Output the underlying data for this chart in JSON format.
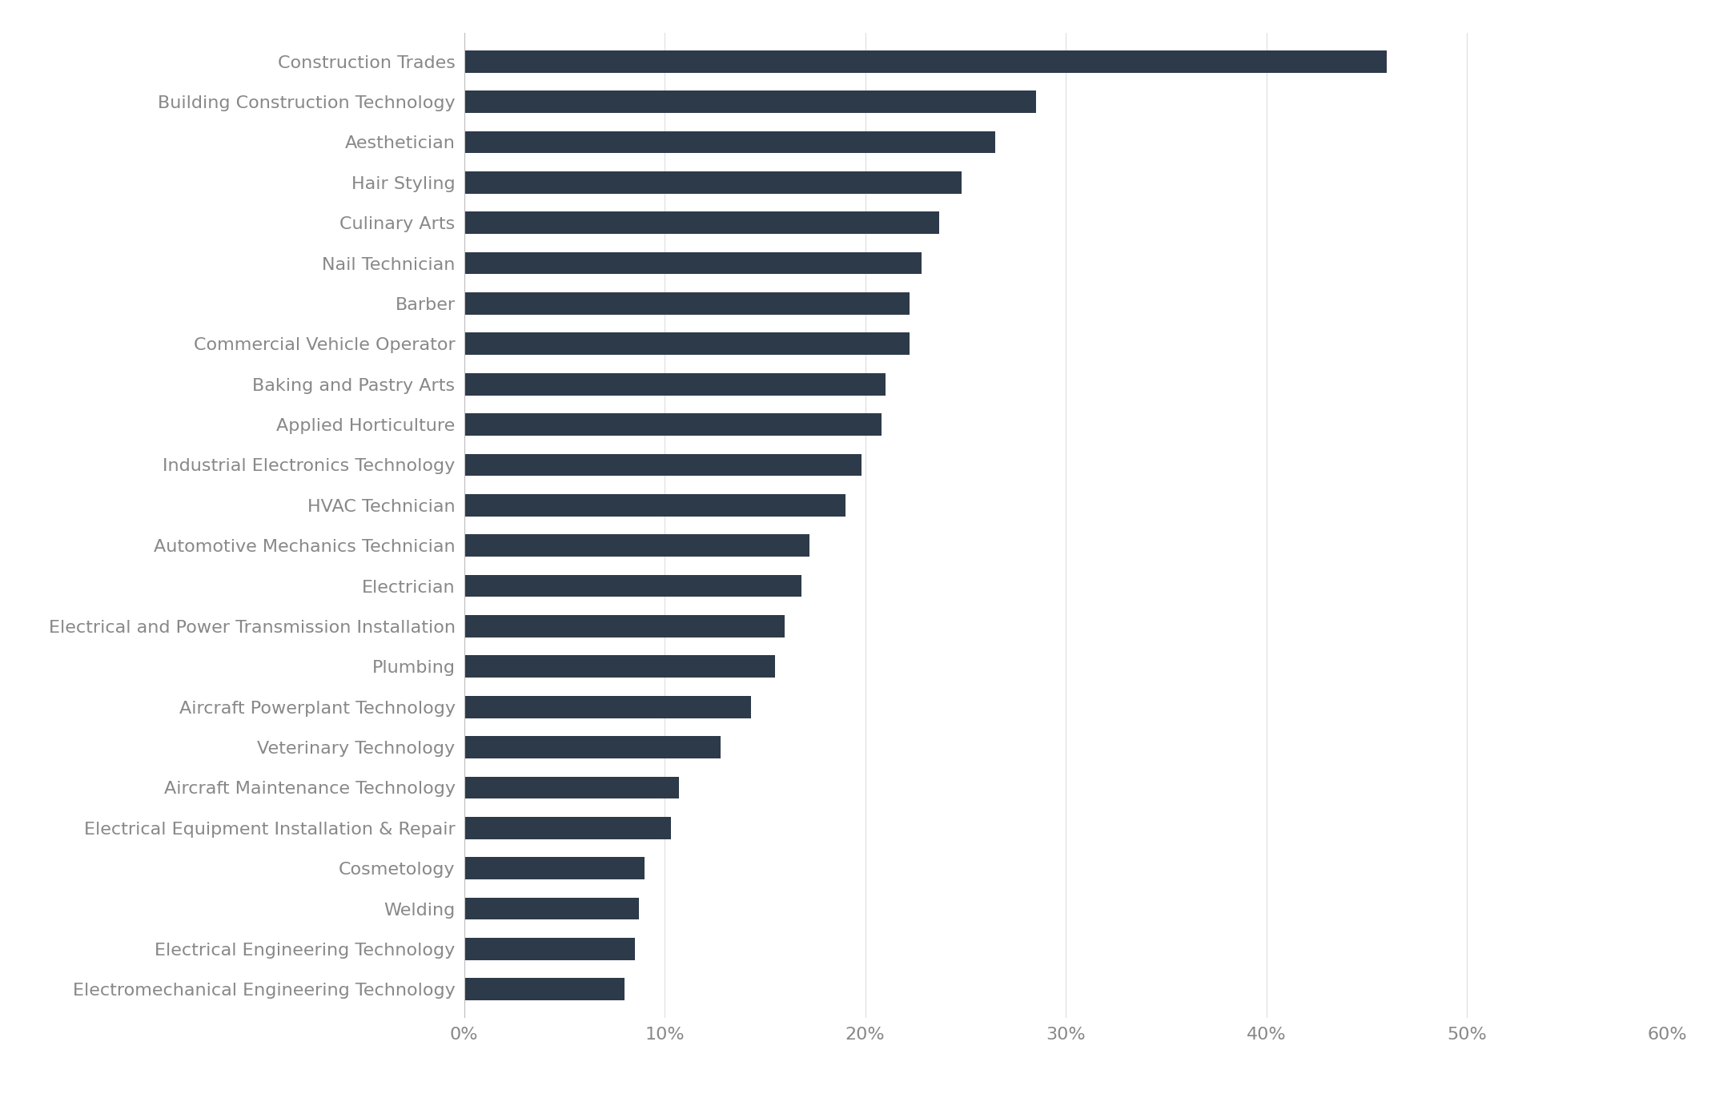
{
  "categories": [
    "Construction Trades",
    "Building Construction Technology",
    "Aesthetician",
    "Hair Styling",
    "Culinary Arts",
    "Nail Technician",
    "Barber",
    "Commercial Vehicle Operator",
    "Baking and Pastry Arts",
    "Applied Horticulture",
    "Industrial Electronics Technology",
    "HVAC Technician",
    "Automotive Mechanics Technician",
    "Electrician",
    "Electrical and Power Transmission Installation",
    "Plumbing",
    "Aircraft Powerplant Technology",
    "Veterinary Technology",
    "Aircraft Maintenance Technology",
    "Electrical Equipment Installation & Repair",
    "Cosmetology",
    "Welding",
    "Electrical Engineering Technology",
    "Electromechanical Engineering Technology"
  ],
  "values": [
    0.46,
    0.285,
    0.265,
    0.248,
    0.237,
    0.228,
    0.222,
    0.222,
    0.21,
    0.208,
    0.198,
    0.19,
    0.172,
    0.168,
    0.16,
    0.155,
    0.143,
    0.128,
    0.107,
    0.103,
    0.09,
    0.087,
    0.085,
    0.08
  ],
  "bar_color": "#2d3a4a",
  "background_color": "#ffffff",
  "xlim": [
    0,
    0.6
  ],
  "xticks": [
    0,
    0.1,
    0.2,
    0.3,
    0.4,
    0.5,
    0.6
  ],
  "xticklabels": [
    "0%",
    "10%",
    "20%",
    "30%",
    "40%",
    "50%",
    "60%"
  ],
  "tick_color": "#888888",
  "label_fontsize": 16,
  "tick_fontsize": 16,
  "bar_height": 0.55
}
